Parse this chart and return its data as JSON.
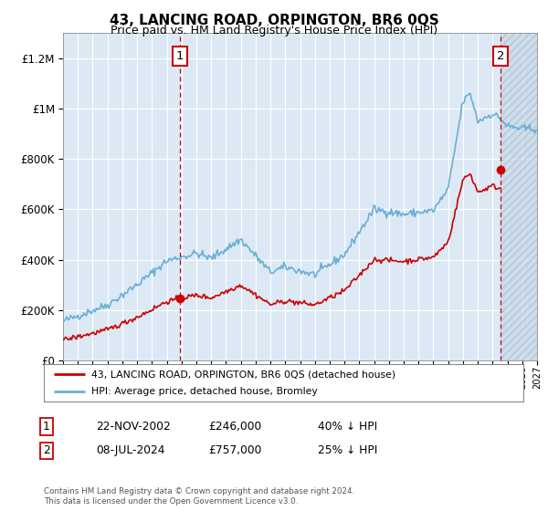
{
  "title": "43, LANCING ROAD, ORPINGTON, BR6 0QS",
  "subtitle": "Price paid vs. HM Land Registry's House Price Index (HPI)",
  "hpi_label": "HPI: Average price, detached house, Bromley",
  "property_label": "43, LANCING ROAD, ORPINGTON, BR6 0QS (detached house)",
  "footnote": "Contains HM Land Registry data © Crown copyright and database right 2024.\nThis data is licensed under the Open Government Licence v3.0.",
  "sale1_date": "22-NOV-2002",
  "sale1_price": "£246,000",
  "sale1_hpi": "40% ↓ HPI",
  "sale1_year": 2002.9,
  "sale1_value": 246000,
  "sale2_date": "08-JUL-2024",
  "sale2_price": "£757,000",
  "sale2_hpi": "25% ↓ HPI",
  "sale2_year": 2024.53,
  "sale2_value": 757000,
  "ylim": [
    0,
    1300000
  ],
  "xlim_start": 1995,
  "xlim_end": 2027,
  "bg_color": "#dce9f5",
  "line_color_hpi": "#6aaed6",
  "line_color_property": "#cc0000",
  "grid_color": "#ffffff",
  "annotation_box_color": "#cc0000",
  "hatch_bg_color": "#c8d8e8"
}
